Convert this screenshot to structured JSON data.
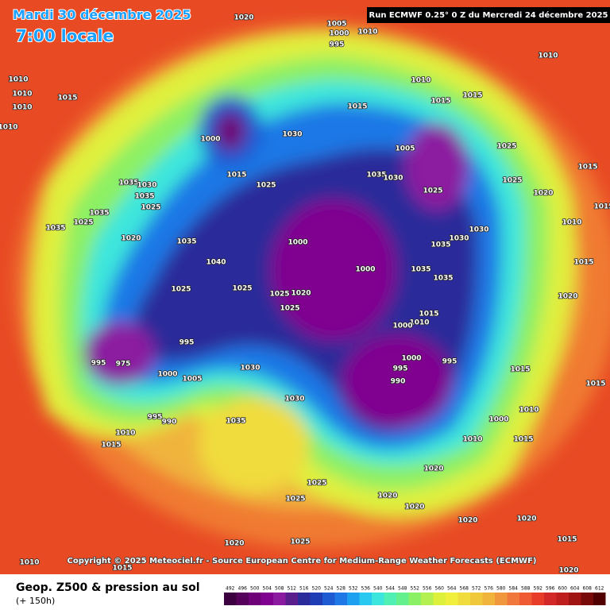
{
  "header": {
    "date": "Mardi 30 décembre 2025",
    "time": "7:00 locale",
    "run": "Run ECMWF 0.25° 0 Z du Mercredi 24 décembre 2025"
  },
  "copyright": "Copyright © 2025 Meteociel.fr - Source European Centre for Medium-Range Weather Forecasts (ECMWF)",
  "footer": {
    "title": "Geop. Z500 & pression au sol",
    "lead": "(+ 150h)"
  },
  "legend": {
    "labels": [
      "492",
      "496",
      "500",
      "504",
      "508",
      "512",
      "516",
      "520",
      "524",
      "528",
      "532",
      "536",
      "540",
      "544",
      "548",
      "552",
      "556",
      "560",
      "564",
      "568",
      "572",
      "576",
      "580",
      "584",
      "588",
      "592",
      "596",
      "600",
      "604",
      "608",
      "612"
    ],
    "colors": [
      "#3c0040",
      "#55005a",
      "#6e0078",
      "#800090",
      "#8c1aa0",
      "#5a1e8c",
      "#2a2a9a",
      "#1e3cb4",
      "#1e5ad2",
      "#1e78e6",
      "#1ea0f0",
      "#28c8f0",
      "#3ce6dc",
      "#50f0b4",
      "#64f08c",
      "#8cf064",
      "#b4f050",
      "#dcf03c",
      "#f0f03c",
      "#f0dc3c",
      "#f0c83c",
      "#f0b43c",
      "#f0963c",
      "#f0783c",
      "#f05a32",
      "#e63c28",
      "#d22828",
      "#be1e1e",
      "#a01414",
      "#780a0a",
      "#500000"
    ]
  },
  "pressure_labels": [
    "1020",
    "1005",
    "1000",
    "995",
    "1010",
    "1010",
    "1010",
    "1010",
    "1015",
    "1010",
    "1010",
    "1010",
    "1015",
    "1015",
    "1015",
    "1000",
    "1030",
    "1005",
    "1025",
    "1015",
    "1025",
    "1035",
    "1030",
    "1025",
    "1025",
    "1020",
    "1015",
    "1035",
    "1030",
    "1035",
    "1025",
    "1035",
    "1025",
    "1035",
    "1020",
    "1035",
    "1000",
    "1030",
    "1035",
    "1030",
    "1040",
    "1000",
    "1035",
    "1035",
    "1025",
    "1025",
    "1025",
    "1020",
    "1025",
    "1015",
    "1010",
    "1000",
    "995",
    "1000",
    "995",
    "995",
    "990",
    "975",
    "995",
    "1000",
    "1005",
    "1030",
    "1030",
    "1035",
    "995",
    "990",
    "1010",
    "1015",
    "1000",
    "1010",
    "1015",
    "1010",
    "1020",
    "1025",
    "1025",
    "1020",
    "1020",
    "1020",
    "1020",
    "1020",
    "1025",
    "1010",
    "1015",
    "1015",
    "1020",
    "1015",
    "1020",
    "1015",
    "1010",
    "1015",
    "1015"
  ]
}
